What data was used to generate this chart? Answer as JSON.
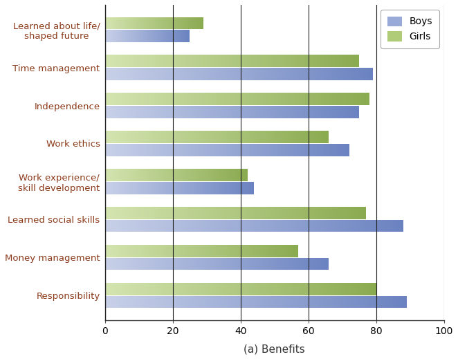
{
  "categories": [
    "Learned about life/\nshaped future",
    "Time management",
    "Independence",
    "Work ethics",
    "Work experience/\nskill development",
    "Learned social skills",
    "Money management",
    "Responsibility"
  ],
  "boys_values": [
    25,
    79,
    75,
    72,
    44,
    88,
    66,
    89
  ],
  "girls_values": [
    29,
    75,
    78,
    66,
    42,
    77,
    57,
    80
  ],
  "boys_color_left": "#c8d0e8",
  "boys_color_right": "#6a82c0",
  "girls_color_left": "#d4e4b0",
  "girls_color_right": "#8aaa50",
  "legend_boys_color": "#9aaad8",
  "legend_girls_color": "#b0cc78",
  "xlabel": "(a) Benefits",
  "xlim": [
    0,
    100
  ],
  "xticks": [
    0,
    20,
    40,
    60,
    80,
    100
  ],
  "bar_height": 0.32,
  "label_color": "#8B3A1A",
  "background_color": "#ffffff",
  "grid_color": "#222222"
}
